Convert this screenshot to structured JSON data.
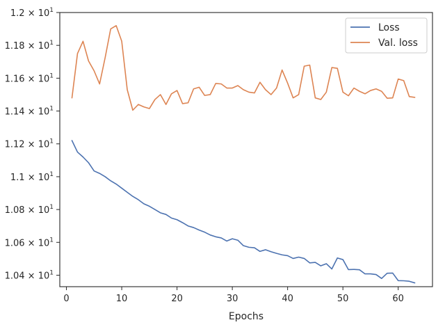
{
  "chart_data": {
    "type": "line",
    "title": "",
    "xlabel": "Epochs",
    "ylabel": "",
    "xlim": [
      -1.2,
      66.2
    ],
    "ylim": [
      10.33,
      12.0
    ],
    "grid": false,
    "legend_position": "top-right",
    "xticks": [
      0,
      10,
      20,
      30,
      40,
      50,
      60
    ],
    "xtick_labels": [
      "0",
      "10",
      "20",
      "30",
      "40",
      "50",
      "60"
    ],
    "yticks": [
      10.4,
      10.6,
      10.8,
      11.0,
      11.2,
      11.4,
      11.6,
      11.8,
      12.0
    ],
    "ytick_labels": [
      {
        "base": "1.04 × 10",
        "exp": "1"
      },
      {
        "base": "1.06 × 10",
        "exp": "1"
      },
      {
        "base": "1.08 × 10",
        "exp": "1"
      },
      {
        "base": "1.1 × 10",
        "exp": "1"
      },
      {
        "base": "1.12 × 10",
        "exp": "1"
      },
      {
        "base": "1.14 × 10",
        "exp": "1"
      },
      {
        "base": "1.16 × 10",
        "exp": "1"
      },
      {
        "base": "1.18 × 10",
        "exp": "1"
      },
      {
        "base": "1.2 × 10",
        "exp": "1"
      }
    ],
    "x": [
      1,
      2,
      3,
      4,
      5,
      6,
      7,
      8,
      9,
      10,
      11,
      12,
      13,
      14,
      15,
      16,
      17,
      18,
      19,
      20,
      21,
      22,
      23,
      24,
      25,
      26,
      27,
      28,
      29,
      30,
      31,
      32,
      33,
      34,
      35,
      36,
      37,
      38,
      39,
      40,
      41,
      42,
      43,
      44,
      45,
      46,
      47,
      48,
      49,
      50,
      51,
      52,
      53,
      54,
      55,
      56,
      57,
      58,
      59,
      60,
      61,
      62,
      63
    ],
    "series": [
      {
        "name": "Loss",
        "color": "#4c72b0",
        "values": [
          11.22,
          11.15,
          11.12,
          11.085,
          11.035,
          11.02,
          11.0,
          10.975,
          10.955,
          10.93,
          10.905,
          10.88,
          10.86,
          10.835,
          10.82,
          10.8,
          10.78,
          10.77,
          10.748,
          10.738,
          10.72,
          10.7,
          10.69,
          10.675,
          10.662,
          10.645,
          10.634,
          10.627,
          10.608,
          10.622,
          10.613,
          10.58,
          10.57,
          10.567,
          10.545,
          10.555,
          10.543,
          10.533,
          10.524,
          10.519,
          10.502,
          10.51,
          10.502,
          10.475,
          10.478,
          10.457,
          10.47,
          10.438,
          10.505,
          10.495,
          10.434,
          10.435,
          10.433,
          10.408,
          10.408,
          10.404,
          10.38,
          10.412,
          10.413,
          10.367,
          10.366,
          10.363,
          10.353
        ]
      },
      {
        "name": "Val. loss",
        "color": "#dd8452",
        "values": [
          11.48,
          11.75,
          11.825,
          11.705,
          11.645,
          11.565,
          11.725,
          11.9,
          11.92,
          11.825,
          11.53,
          11.405,
          11.44,
          11.425,
          11.415,
          11.47,
          11.5,
          11.44,
          11.505,
          11.525,
          11.445,
          11.45,
          11.535,
          11.545,
          11.495,
          11.5,
          11.568,
          11.565,
          11.54,
          11.54,
          11.555,
          11.53,
          11.515,
          11.51,
          11.575,
          11.53,
          11.5,
          11.54,
          11.65,
          11.57,
          11.48,
          11.5,
          11.673,
          11.68,
          11.48,
          11.47,
          11.515,
          11.665,
          11.66,
          11.515,
          11.493,
          11.54,
          11.52,
          11.505,
          11.525,
          11.535,
          11.52,
          11.478,
          11.48,
          11.595,
          11.585,
          11.488,
          11.483
        ]
      }
    ]
  }
}
